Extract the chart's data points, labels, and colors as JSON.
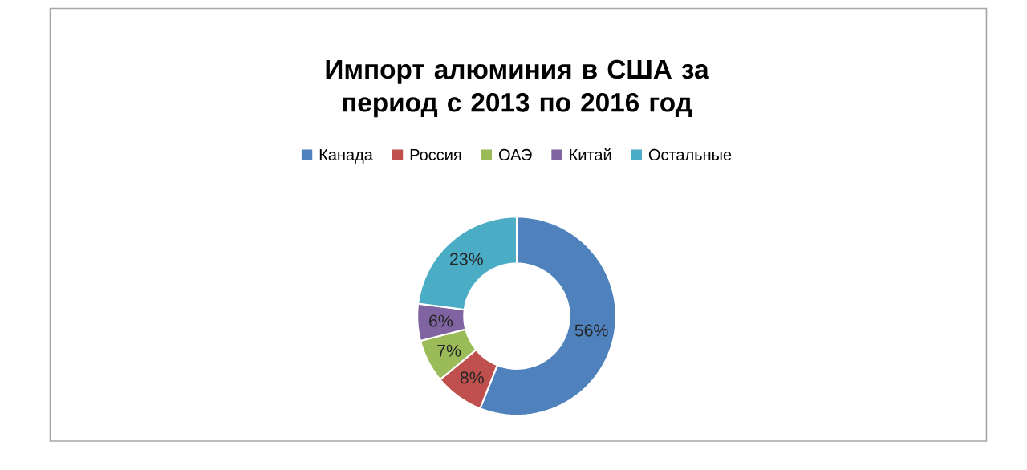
{
  "chart_data": {
    "type": "donut",
    "title": "Импорт алюминия в США за период с 2013 по 2016 год",
    "categories": [
      "Канада",
      "Россия",
      "ОАЭ",
      "Китай",
      "Остальные"
    ],
    "values": [
      56,
      8,
      7,
      6,
      23
    ],
    "value_labels": [
      "56%",
      "8%",
      "7%",
      "6%",
      "23%"
    ],
    "colors": [
      "#4f81bd",
      "#c0504d",
      "#9bbb59",
      "#8064a2",
      "#4bacc6"
    ],
    "legend": "top"
  }
}
